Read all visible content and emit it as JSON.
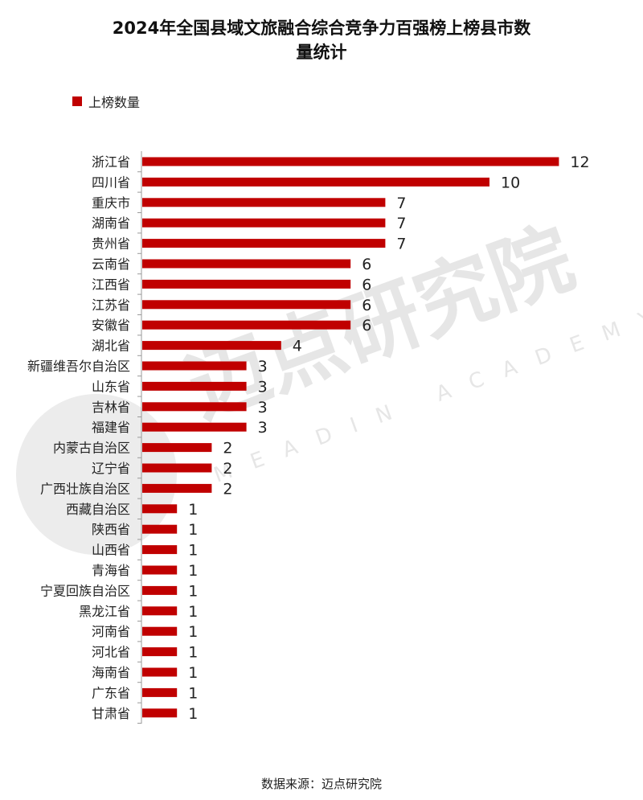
{
  "title": "2024年全国县域文旅融合综合竞争力百强榜上榜县市数量统计",
  "title_lines": [
    "2024年全国县域文旅融合综合竞争力百强榜上榜县市数",
    "量统计"
  ],
  "source": "数据来源：迈点研究院",
  "watermark": {
    "cn": "迈点研究院",
    "en": "MEADIN ACADEMY"
  },
  "colors": {
    "bar": "#c00000",
    "axis": "#9a9a9a",
    "watermark": "#e3e3e3"
  },
  "chart_data": {
    "type": "bar",
    "orientation": "horizontal",
    "title": "2024年全国县域文旅融合综合竞争力百强榜上榜县市数量统计",
    "legend": {
      "position": "top-left",
      "entries": [
        "上榜数量"
      ]
    },
    "grid": false,
    "categories": [
      "浙江省",
      "四川省",
      "重庆市",
      "湖南省",
      "贵州省",
      "云南省",
      "江西省",
      "江苏省",
      "安徽省",
      "湖北省",
      "新疆维吾尔自治区",
      "山东省",
      "吉林省",
      "福建省",
      "内蒙古自治区",
      "辽宁省",
      "广西壮族自治区",
      "西藏自治区",
      "陕西省",
      "山西省",
      "青海省",
      "宁夏回族自治区",
      "黑龙江省",
      "河南省",
      "河北省",
      "海南省",
      "广东省",
      "甘肃省"
    ],
    "series": [
      {
        "name": "上榜数量",
        "values": [
          12,
          10,
          7,
          7,
          7,
          6,
          6,
          6,
          6,
          4,
          3,
          3,
          3,
          3,
          2,
          2,
          2,
          1,
          1,
          1,
          1,
          1,
          1,
          1,
          1,
          1,
          1,
          1
        ]
      }
    ],
    "xlim": [
      0,
      12
    ]
  }
}
